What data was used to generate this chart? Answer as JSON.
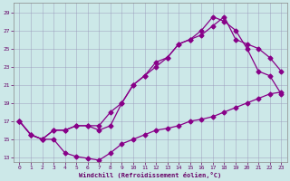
{
  "xlabel": "Windchill (Refroidissement éolien,°C)",
  "bg_color": "#cce8e8",
  "line_color": "#880088",
  "grid_color": "#aaaacc",
  "xlim": [
    -0.5,
    23.5
  ],
  "ylim": [
    12.5,
    30
  ],
  "xticks": [
    0,
    1,
    2,
    3,
    4,
    5,
    6,
    7,
    8,
    9,
    10,
    11,
    12,
    13,
    14,
    15,
    16,
    17,
    18,
    19,
    20,
    21,
    22,
    23
  ],
  "yticks": [
    13,
    15,
    17,
    19,
    21,
    23,
    25,
    27,
    29
  ],
  "series1_x": [
    0,
    1,
    2,
    3,
    4,
    5,
    6,
    7,
    8,
    9,
    10,
    11,
    12,
    13,
    14,
    15,
    16,
    17,
    18,
    19,
    20,
    21,
    22,
    23
  ],
  "series1_y": [
    17,
    15.5,
    15,
    15,
    13.5,
    13.1,
    12.9,
    12.7,
    13.5,
    14.5,
    15,
    15.5,
    16,
    16.2,
    16.5,
    17,
    17.2,
    17.5,
    18,
    18.5,
    19,
    19.5,
    20,
    20.2
  ],
  "series2_x": [
    0,
    1,
    2,
    3,
    4,
    5,
    6,
    7,
    8,
    9,
    10,
    11,
    12,
    13,
    14,
    15,
    16,
    17,
    18,
    19,
    20,
    21,
    22,
    23
  ],
  "series2_y": [
    17,
    15.5,
    15,
    16,
    16,
    16.5,
    16.5,
    16,
    16.5,
    19,
    21,
    22,
    23.5,
    24,
    25.5,
    26,
    27,
    28.5,
    28,
    27,
    25,
    22.5,
    22,
    20
  ],
  "series3_x": [
    0,
    1,
    2,
    3,
    4,
    5,
    6,
    7,
    8,
    9,
    10,
    11,
    12,
    13,
    14,
    15,
    16,
    17,
    18,
    19,
    20,
    21,
    22,
    23
  ],
  "series3_y": [
    17,
    15.5,
    15,
    16,
    16,
    16.5,
    16.5,
    16.5,
    18,
    19,
    21,
    22,
    23,
    24,
    25.5,
    26,
    26.5,
    27.5,
    28.5,
    26,
    25.5,
    25,
    24,
    22.5
  ]
}
